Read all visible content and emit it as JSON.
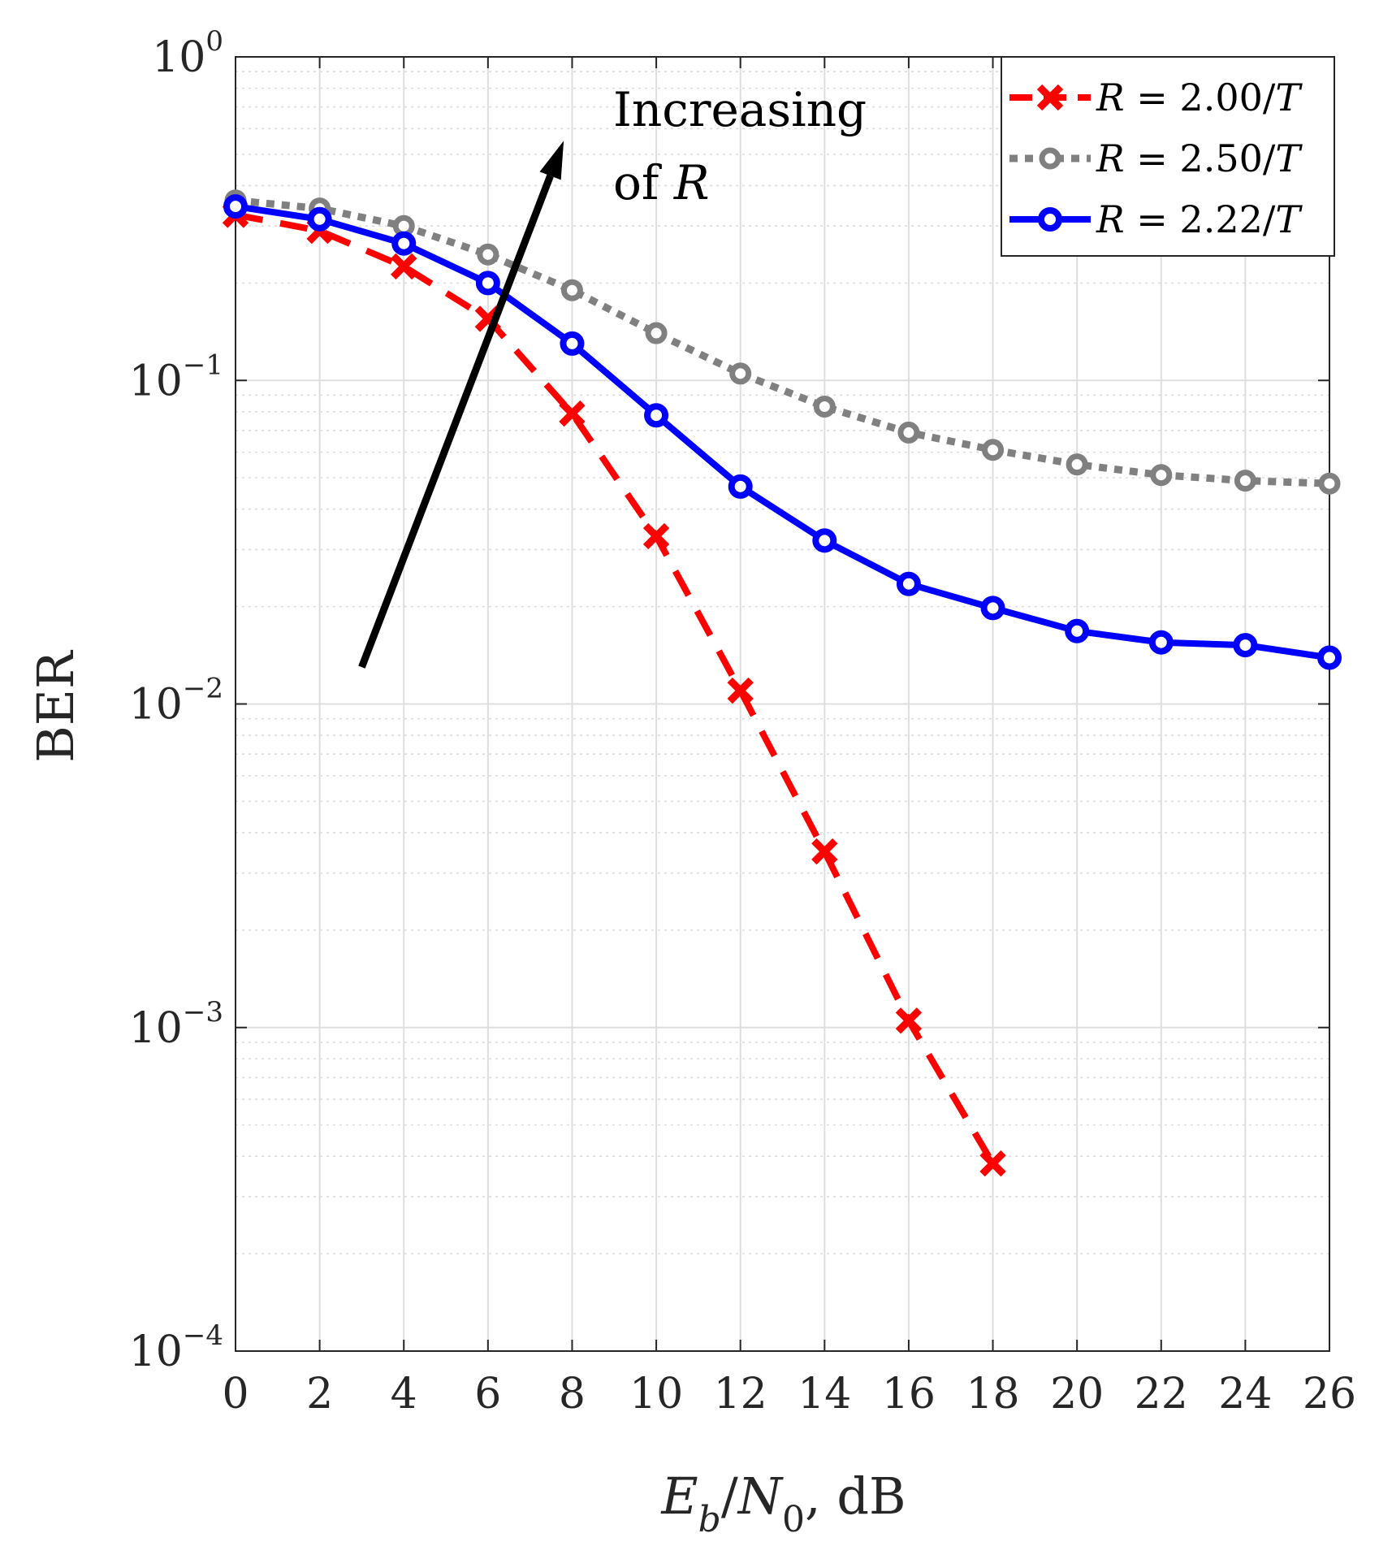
{
  "chart_data": {
    "type": "line",
    "xscale": "linear",
    "yscale": "log",
    "xlim": [
      0,
      26
    ],
    "ylim": [
      0.0001,
      1
    ],
    "grid": true,
    "xlabel": {
      "base": "E",
      "sub1": "b",
      "slash": "/",
      "base2": "N",
      "sub2": "0",
      "suffix": ", dB"
    },
    "ylabel": "BER",
    "x_ticks": [
      "0",
      "2",
      "4",
      "6",
      "8",
      "10",
      "12",
      "14",
      "16",
      "18",
      "20",
      "22",
      "24",
      "26"
    ],
    "y_ticks": [
      {
        "base": "10",
        "exp": "0",
        "value": 1
      },
      {
        "base": "10",
        "exp": "−1",
        "value": 0.1
      },
      {
        "base": "10",
        "exp": "−2",
        "value": 0.01
      },
      {
        "base": "10",
        "exp": "−3",
        "value": 0.001
      },
      {
        "base": "10",
        "exp": "−4",
        "value": 0.0001
      }
    ],
    "annotation": {
      "line1": "Increasing",
      "line2_prefix": "of ",
      "line2_var": "R",
      "arrow_from": [
        3,
        0.013
      ],
      "arrow_to": [
        7.8,
        0.55
      ]
    },
    "legend_position": "top-right",
    "series": [
      {
        "name": "R = 2.00/T",
        "label_var": "R",
        "label_mid": " = 2.00/",
        "label_unit": "T",
        "color": "#ff0000",
        "style": "dashed",
        "marker": "x",
        "x": [
          0,
          2,
          4,
          6,
          8,
          10,
          12,
          14,
          16,
          18
        ],
        "y": [
          0.325,
          0.29,
          0.225,
          0.155,
          0.079,
          0.033,
          0.011,
          0.0035,
          0.00105,
          0.00038
        ]
      },
      {
        "name": "R = 2.50/T",
        "label_var": "R",
        "label_mid": " = 2.50/",
        "label_unit": "T",
        "color": "#808080",
        "style": "dotted",
        "marker": "o-small",
        "x": [
          0,
          2,
          4,
          6,
          8,
          10,
          12,
          14,
          16,
          18,
          20,
          22,
          24,
          26
        ],
        "y": [
          0.36,
          0.34,
          0.3,
          0.245,
          0.19,
          0.14,
          0.105,
          0.083,
          0.069,
          0.061,
          0.055,
          0.051,
          0.049,
          0.048
        ]
      },
      {
        "name": "R = 2.22/T",
        "label_var": "R",
        "label_mid": " = 2.22/",
        "label_unit": "T",
        "color": "#0000ff",
        "style": "solid",
        "marker": "o",
        "x": [
          0,
          2,
          4,
          6,
          8,
          10,
          12,
          14,
          16,
          18,
          20,
          22,
          24,
          26
        ],
        "y": [
          0.345,
          0.315,
          0.265,
          0.2,
          0.13,
          0.078,
          0.047,
          0.032,
          0.0235,
          0.0198,
          0.0168,
          0.0155,
          0.0152,
          0.0139
        ]
      }
    ]
  }
}
